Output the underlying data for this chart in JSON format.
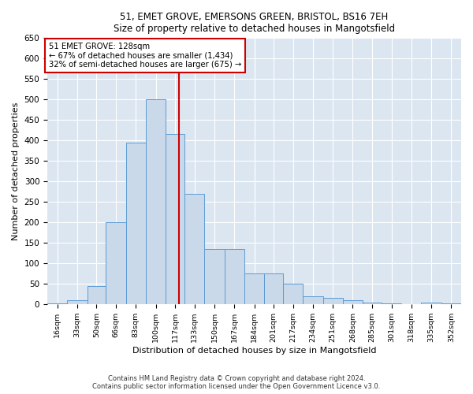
{
  "title1": "51, EMET GROVE, EMERSONS GREEN, BRISTOL, BS16 7EH",
  "title2": "Size of property relative to detached houses in Mangotsfield",
  "xlabel": "Distribution of detached houses by size in Mangotsfield",
  "ylabel": "Number of detached properties",
  "footer1": "Contains HM Land Registry data © Crown copyright and database right 2024.",
  "footer2": "Contains public sector information licensed under the Open Government Licence v3.0.",
  "annotation_title": "51 EMET GROVE: 128sqm",
  "annotation_line1": "← 67% of detached houses are smaller (1,434)",
  "annotation_line2": "32% of semi-detached houses are larger (675) →",
  "vline_x": 128,
  "bar_left_edges": [
    16,
    33,
    50,
    66,
    83,
    100,
    117,
    133,
    150,
    167,
    184,
    201,
    217,
    234,
    251,
    268,
    285,
    301,
    318,
    335,
    352
  ],
  "bar_heights": [
    2,
    10,
    45,
    200,
    395,
    500,
    415,
    270,
    135,
    135,
    75,
    75,
    50,
    20,
    15,
    10,
    5,
    2,
    0,
    5,
    2
  ],
  "bar_color": "#c9d9ea",
  "bar_edge_color": "#5b9bd5",
  "vline_color": "#cc0000",
  "annotation_box_color": "#cc0000",
  "background_color": "#dce6f1",
  "ylim": [
    0,
    650
  ],
  "yticks": [
    0,
    50,
    100,
    150,
    200,
    250,
    300,
    350,
    400,
    450,
    500,
    550,
    600,
    650
  ],
  "tick_labels": [
    "16sqm",
    "33sqm",
    "50sqm",
    "66sqm",
    "83sqm",
    "100sqm",
    "117sqm",
    "133sqm",
    "150sqm",
    "167sqm",
    "184sqm",
    "201sqm",
    "217sqm",
    "234sqm",
    "251sqm",
    "268sqm",
    "285sqm",
    "301sqm",
    "318sqm",
    "335sqm",
    "352sqm"
  ],
  "figsize": [
    6.0,
    5.0
  ],
  "dpi": 100
}
